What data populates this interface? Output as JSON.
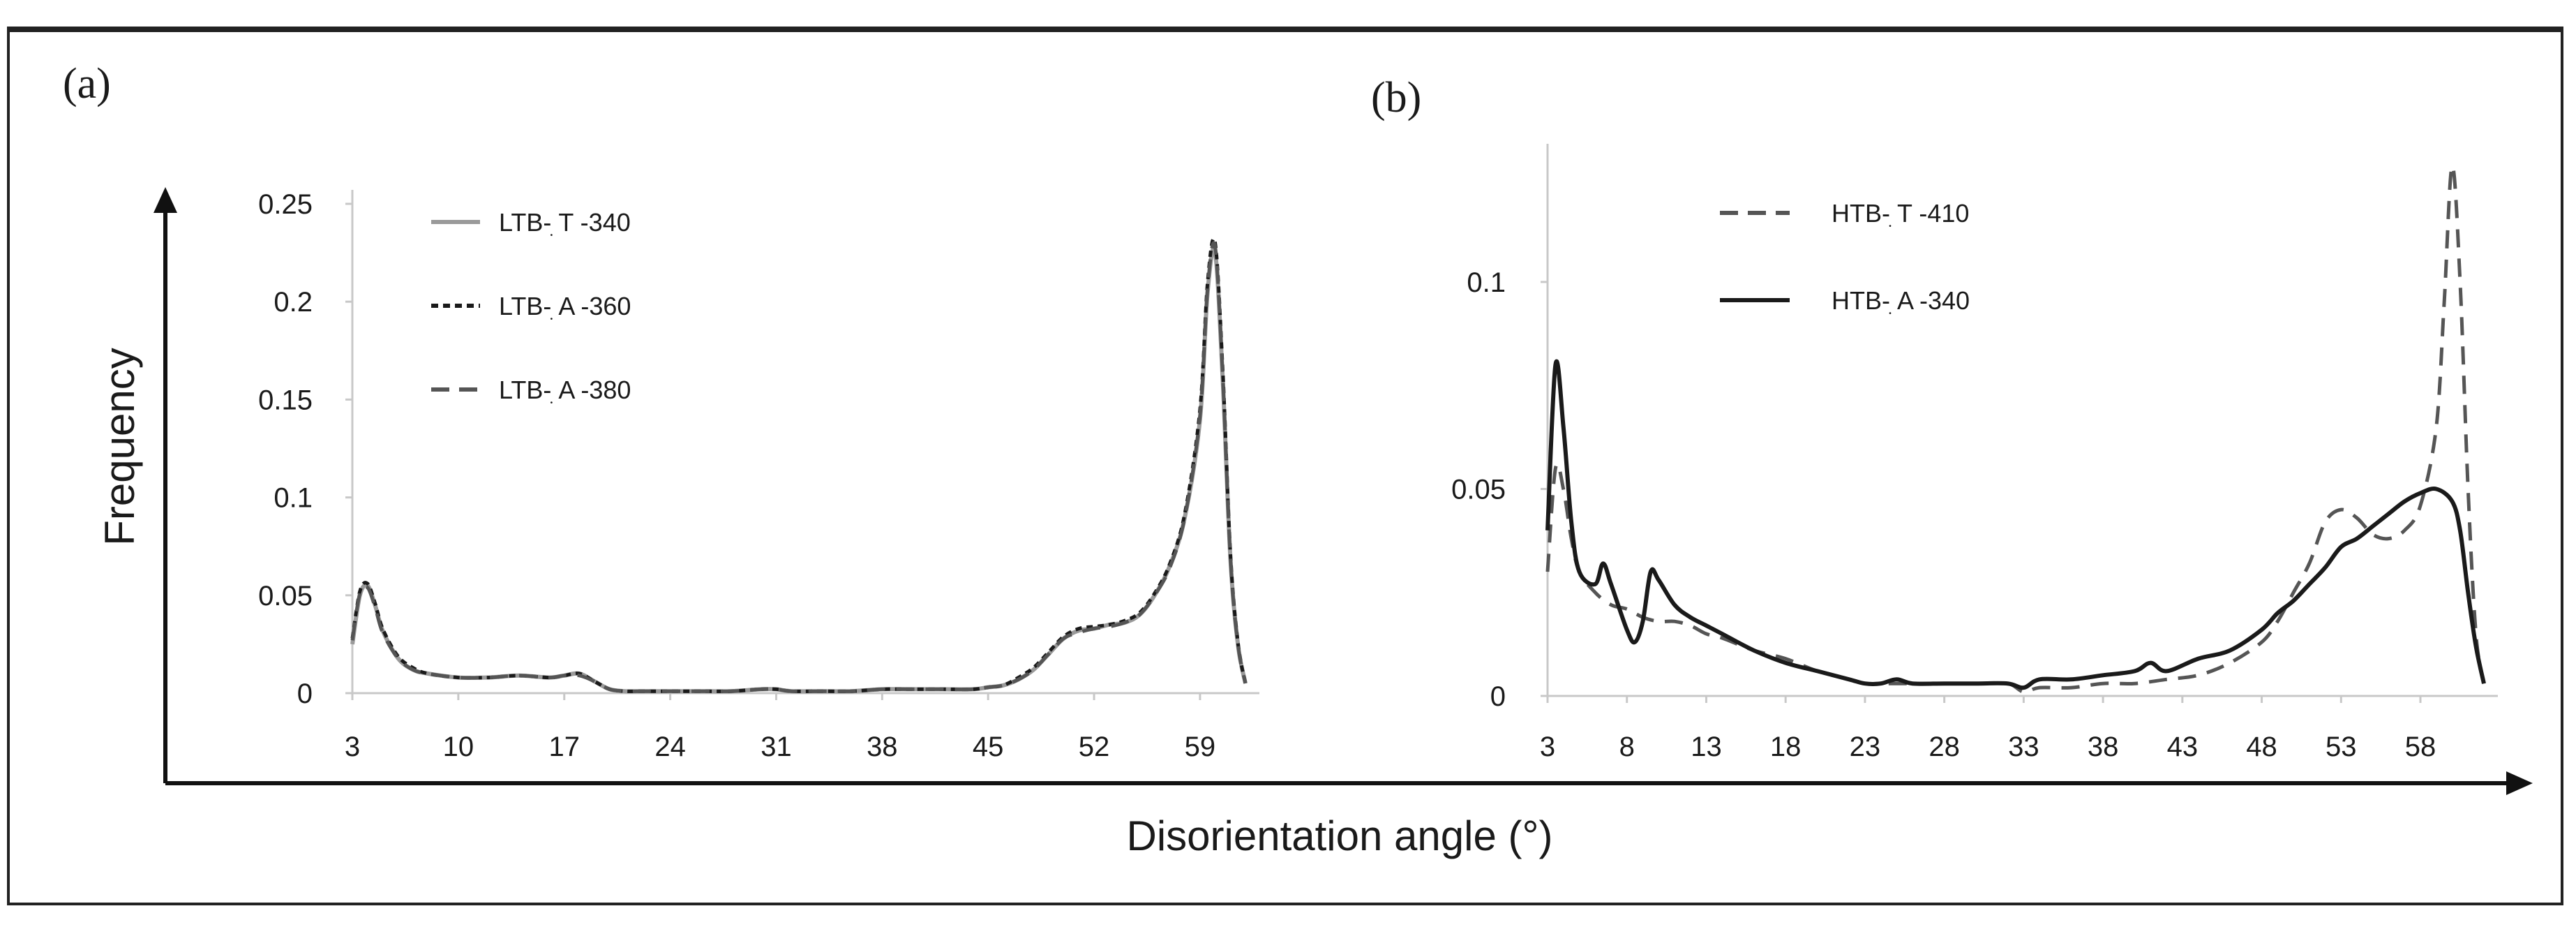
{
  "chart_data": [
    {
      "type": "line",
      "panel_label": "(a)",
      "xlabel": "Disorientation angle (°)",
      "ylabel": "Frequency",
      "xlim": [
        3,
        62
      ],
      "ylim": [
        0,
        0.25
      ],
      "xticks": [
        3,
        10,
        17,
        24,
        31,
        38,
        45,
        52,
        59
      ],
      "yticks": [
        {
          "v": 0,
          "label": "0"
        },
        {
          "v": 0.05,
          "label": "0.05"
        },
        {
          "v": 0.1,
          "label": "0.1"
        },
        {
          "v": 0.15,
          "label": "0.15"
        },
        {
          "v": 0.2,
          "label": "0.2"
        },
        {
          "v": 0.25,
          "label": "0.25"
        }
      ],
      "legend_position": "top-left",
      "series": [
        {
          "name": "LTB-T-340",
          "display": "LTB-ׅ T -340",
          "style": "solid",
          "color": "#9a9a9a",
          "x": [
            3,
            3.5,
            4,
            4.5,
            5,
            6,
            7,
            8,
            10,
            12,
            14,
            16,
            17,
            18,
            19,
            20,
            21,
            22,
            24,
            26,
            28,
            30,
            31,
            32,
            34,
            36,
            38,
            40,
            42,
            44,
            45,
            46,
            47,
            48,
            49,
            50,
            51,
            52,
            53,
            54,
            55,
            56,
            57,
            58,
            59,
            59.5,
            60,
            60.5,
            61,
            61.5,
            62
          ],
          "y": [
            0.025,
            0.05,
            0.055,
            0.045,
            0.032,
            0.018,
            0.012,
            0.01,
            0.008,
            0.008,
            0.009,
            0.008,
            0.009,
            0.01,
            0.006,
            0.002,
            0.001,
            0.001,
            0.001,
            0.001,
            0.001,
            0.002,
            0.002,
            0.001,
            0.001,
            0.001,
            0.002,
            0.002,
            0.002,
            0.002,
            0.003,
            0.004,
            0.007,
            0.012,
            0.02,
            0.028,
            0.032,
            0.033,
            0.035,
            0.036,
            0.04,
            0.05,
            0.065,
            0.09,
            0.14,
            0.205,
            0.225,
            0.16,
            0.07,
            0.025,
            0.005
          ]
        },
        {
          "name": "LTB-A-360",
          "display": "LTB-ׅ A -360",
          "style": "dotted",
          "color": "#1a1a1a",
          "x": [
            3,
            3.5,
            4,
            4.5,
            5,
            6,
            7,
            8,
            10,
            12,
            14,
            16,
            17,
            18,
            19,
            20,
            21,
            22,
            24,
            26,
            28,
            30,
            31,
            32,
            34,
            36,
            38,
            40,
            42,
            44,
            45,
            46,
            47,
            48,
            49,
            50,
            51,
            52,
            53,
            54,
            55,
            56,
            57,
            58,
            59,
            59.5,
            60,
            60.5,
            61,
            61.5,
            62
          ],
          "y": [
            0.028,
            0.052,
            0.056,
            0.046,
            0.033,
            0.019,
            0.013,
            0.01,
            0.008,
            0.008,
            0.009,
            0.008,
            0.009,
            0.01,
            0.006,
            0.002,
            0.001,
            0.001,
            0.001,
            0.001,
            0.001,
            0.002,
            0.002,
            0.001,
            0.001,
            0.001,
            0.002,
            0.002,
            0.002,
            0.002,
            0.003,
            0.004,
            0.008,
            0.013,
            0.021,
            0.029,
            0.033,
            0.034,
            0.035,
            0.037,
            0.041,
            0.051,
            0.066,
            0.092,
            0.145,
            0.21,
            0.23,
            0.165,
            0.072,
            0.026,
            0.005
          ]
        },
        {
          "name": "LTB-A-380",
          "display": "LTB-ׅ A -380",
          "style": "dashed",
          "color": "#555555",
          "x": [
            3,
            3.5,
            4,
            4.5,
            5,
            6,
            7,
            8,
            10,
            12,
            14,
            16,
            17,
            18,
            19,
            20,
            21,
            22,
            24,
            26,
            28,
            30,
            31,
            32,
            34,
            36,
            38,
            40,
            42,
            44,
            45,
            46,
            47,
            48,
            49,
            50,
            51,
            52,
            53,
            54,
            55,
            56,
            57,
            58,
            59,
            59.5,
            60,
            60.5,
            61,
            61.5,
            62
          ],
          "y": [
            0.027,
            0.051,
            0.054,
            0.044,
            0.031,
            0.018,
            0.012,
            0.01,
            0.008,
            0.008,
            0.009,
            0.008,
            0.009,
            0.009,
            0.006,
            0.002,
            0.001,
            0.001,
            0.001,
            0.001,
            0.001,
            0.002,
            0.002,
            0.001,
            0.001,
            0.001,
            0.002,
            0.002,
            0.002,
            0.002,
            0.003,
            0.004,
            0.007,
            0.012,
            0.02,
            0.028,
            0.031,
            0.033,
            0.034,
            0.036,
            0.04,
            0.05,
            0.064,
            0.09,
            0.142,
            0.207,
            0.228,
            0.162,
            0.07,
            0.025,
            0.005
          ]
        }
      ]
    },
    {
      "type": "line",
      "panel_label": "(b)",
      "xlabel": "Disorientation angle (°)",
      "ylabel": "Frequency",
      "xlim": [
        3,
        62
      ],
      "ylim": [
        0,
        0.13
      ],
      "xticks": [
        3,
        8,
        13,
        18,
        23,
        28,
        33,
        38,
        43,
        48,
        53,
        58
      ],
      "yticks": [
        {
          "v": 0,
          "label": "0"
        },
        {
          "v": 0.05,
          "label": "0.05"
        },
        {
          "v": 0.1,
          "label": "0.1"
        }
      ],
      "legend_position": "top-center",
      "series": [
        {
          "name": "HTB-T-410",
          "display": "HTB-ׅ T -410",
          "style": "dashed",
          "color": "#555555",
          "x": [
            3,
            3.5,
            4,
            4.5,
            5,
            6,
            7,
            8,
            9,
            10,
            11,
            12,
            13,
            14,
            16,
            18,
            20,
            22,
            23,
            24,
            25,
            26,
            28,
            30,
            32,
            33,
            34,
            36,
            38,
            40,
            42,
            44,
            46,
            48,
            49,
            50,
            51,
            52,
            53,
            54,
            55,
            56,
            57,
            58,
            59,
            59.5,
            60,
            60.5,
            61,
            61.5,
            62
          ],
          "y": [
            0.03,
            0.055,
            0.05,
            0.038,
            0.03,
            0.025,
            0.022,
            0.021,
            0.019,
            0.018,
            0.018,
            0.017,
            0.015,
            0.014,
            0.011,
            0.009,
            0.006,
            0.004,
            0.003,
            0.003,
            0.003,
            0.003,
            0.003,
            0.003,
            0.003,
            0.001,
            0.002,
            0.002,
            0.003,
            0.003,
            0.004,
            0.005,
            0.008,
            0.013,
            0.018,
            0.025,
            0.032,
            0.042,
            0.045,
            0.043,
            0.039,
            0.038,
            0.04,
            0.046,
            0.065,
            0.095,
            0.128,
            0.1,
            0.05,
            0.015,
            0.003
          ]
        },
        {
          "name": "HTB-A-340",
          "display": "HTB-ׅ A -340",
          "style": "solid",
          "color": "#1a1a1a",
          "x": [
            3,
            3.5,
            4,
            4.5,
            5,
            6,
            6.5,
            7,
            8,
            8.5,
            9,
            9.5,
            10,
            11,
            12,
            13,
            14,
            16,
            18,
            20,
            22,
            23,
            24,
            25,
            26,
            28,
            30,
            32,
            33,
            34,
            36,
            38,
            40,
            41,
            42,
            44,
            46,
            48,
            49,
            50,
            51,
            52,
            53,
            54,
            55,
            56,
            57,
            58,
            59,
            60,
            60.5,
            61,
            61.5,
            62
          ],
          "y": [
            0.04,
            0.08,
            0.065,
            0.042,
            0.03,
            0.027,
            0.032,
            0.027,
            0.016,
            0.013,
            0.018,
            0.03,
            0.028,
            0.022,
            0.019,
            0.017,
            0.015,
            0.011,
            0.008,
            0.006,
            0.004,
            0.003,
            0.003,
            0.004,
            0.003,
            0.003,
            0.003,
            0.003,
            0.002,
            0.004,
            0.004,
            0.005,
            0.006,
            0.008,
            0.006,
            0.009,
            0.011,
            0.016,
            0.02,
            0.023,
            0.027,
            0.031,
            0.036,
            0.038,
            0.041,
            0.044,
            0.047,
            0.049,
            0.05,
            0.047,
            0.04,
            0.025,
            0.012,
            0.003
          ]
        }
      ]
    }
  ]
}
